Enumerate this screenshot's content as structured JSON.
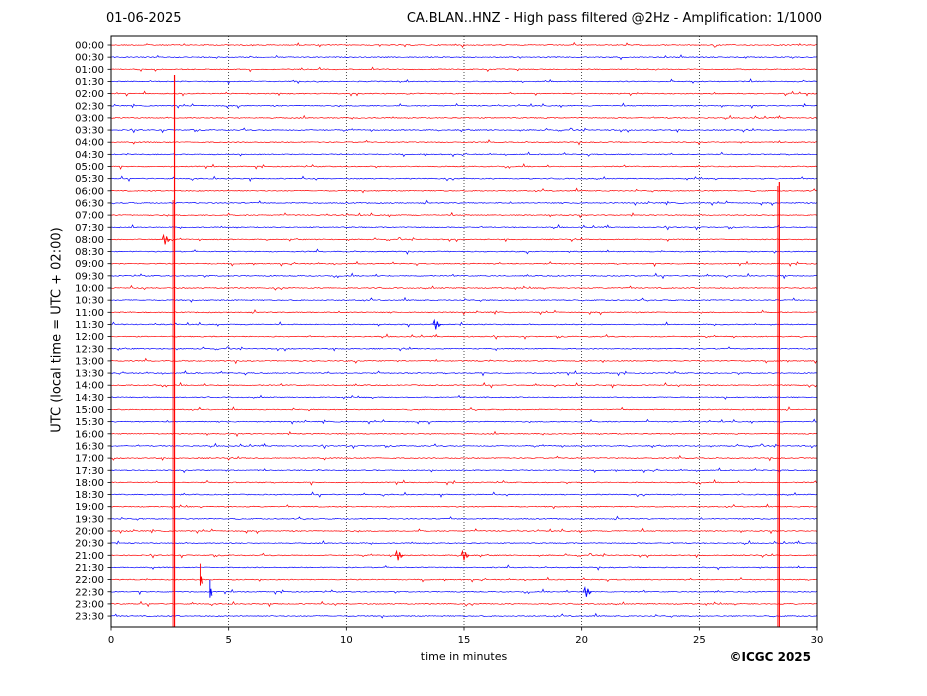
{
  "header": {
    "date": "01-06-2025",
    "title": "CA.BLAN..HNZ - High pass filtered @2Hz - Amplification: 1/1000"
  },
  "footer": {
    "copyright": "©ICGC 2025"
  },
  "chart_data": {
    "type": "line",
    "subtype": "helicorder",
    "xlabel": "time in minutes",
    "ylabel": "UTC (local time = UTC + 02:00)",
    "xlim": [
      0,
      30
    ],
    "xticks": [
      0,
      5,
      10,
      15,
      20,
      25,
      30
    ],
    "grid": "vertical dotted lines at 5-minute intervals",
    "trace_colors": [
      "#ff0000",
      "#0000ff"
    ],
    "color_pattern": "alternating per row, first row red",
    "rows": [
      "00:00",
      "00:30",
      "01:00",
      "01:30",
      "02:00",
      "02:30",
      "03:00",
      "03:30",
      "04:00",
      "04:30",
      "05:00",
      "05:30",
      "06:00",
      "06:30",
      "07:00",
      "07:30",
      "08:00",
      "08:30",
      "09:00",
      "09:30",
      "10:00",
      "10:30",
      "11:00",
      "11:30",
      "12:00",
      "12:30",
      "13:00",
      "13:30",
      "14:00",
      "14:30",
      "15:00",
      "15:30",
      "16:00",
      "16:30",
      "17:00",
      "17:30",
      "18:00",
      "18:30",
      "19:00",
      "19:30",
      "20:00",
      "20:30",
      "21:00",
      "21:30",
      "22:00",
      "22:30",
      "23:00",
      "23:30"
    ],
    "notable_events": [
      {
        "row": "03:00",
        "minute": 2.7,
        "amplitude": "large, spans rows 03:00 to 23:30"
      },
      {
        "row": "22:00",
        "minute": 3.8,
        "amplitude": "medium"
      },
      {
        "row": "22:30",
        "minute": 4.2,
        "amplitude": "medium"
      },
      {
        "row": "06:00",
        "minute": 28.4,
        "amplitude": "large, spans rows 06:00 to 23:30"
      },
      {
        "row": "22:30",
        "minute": 20.2,
        "amplitude": "small"
      },
      {
        "row": "21:00",
        "minute": 12.2,
        "amplitude": "small"
      },
      {
        "row": "21:00",
        "minute": 15.0,
        "amplitude": "small"
      },
      {
        "row": "11:30",
        "minute": 13.8,
        "amplitude": "small"
      },
      {
        "row": "08:00",
        "minute": 2.3,
        "amplitude": "small"
      }
    ]
  }
}
